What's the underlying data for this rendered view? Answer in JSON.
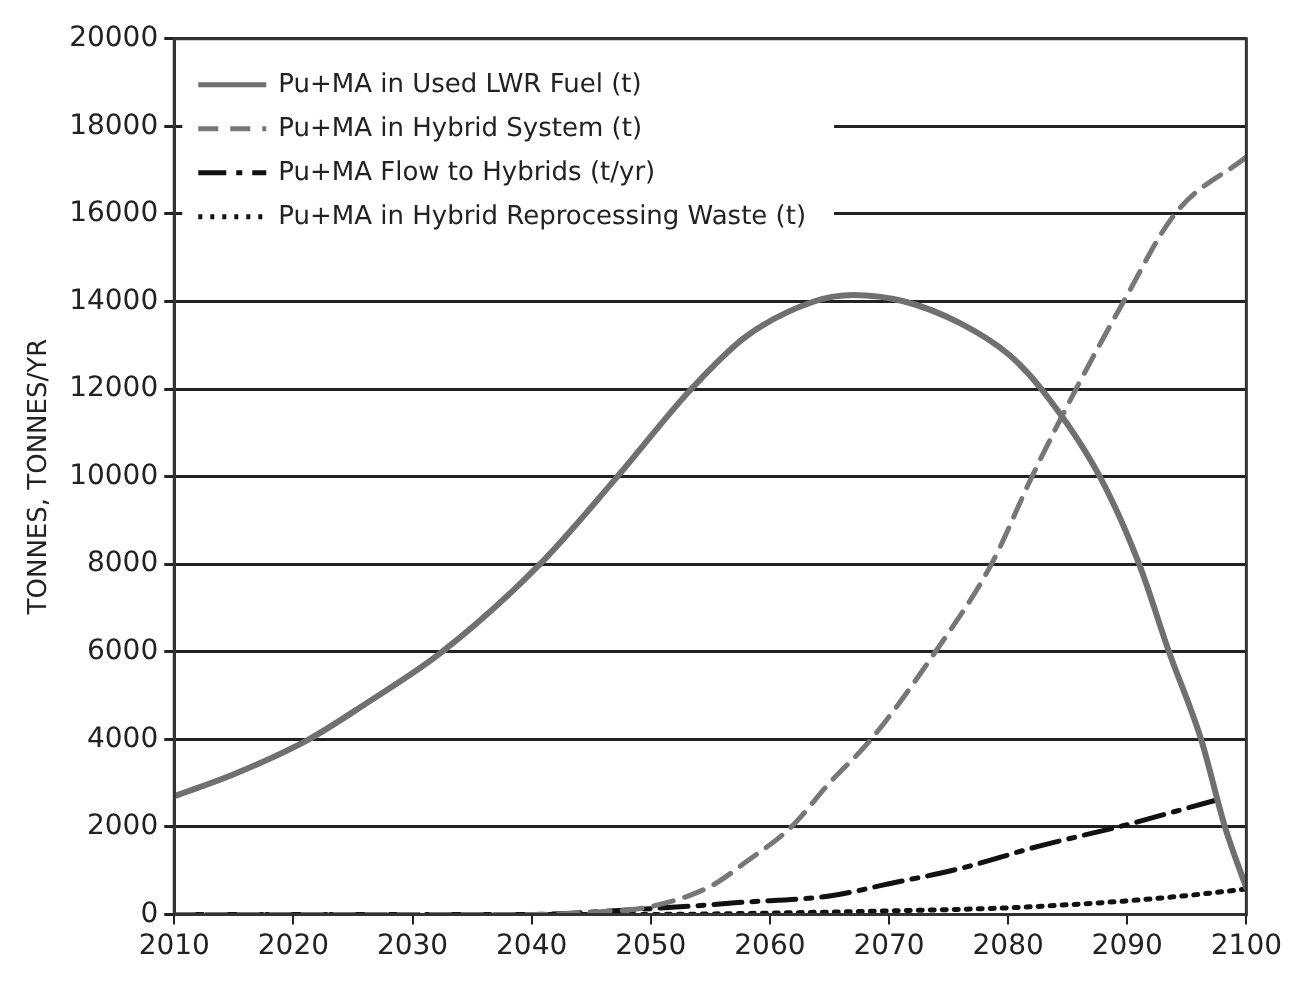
{
  "chart_data": {
    "type": "line",
    "ylabel": "TONNES, TONNES/YR",
    "xlim": [
      2010,
      2100
    ],
    "xticks": [
      2010,
      2020,
      2030,
      2040,
      2050,
      2060,
      2070,
      2080,
      2090,
      2100
    ],
    "ylim": [
      0,
      20000
    ],
    "yticks": [
      0,
      2000,
      4000,
      6000,
      8000,
      10000,
      12000,
      14000,
      16000,
      18000,
      20000
    ],
    "grid": "y",
    "legend": "top left",
    "marker": "none",
    "series": [
      {
        "name": "Pu+MA in Used LWR Fuel (t)",
        "color": "#707070",
        "line_style": "solid",
        "x": [
          2010,
          2015,
          2021.3,
          2026,
          2032.5,
          2040.7,
          2047.2,
          2053.4,
          2058,
          2063.7,
          2067,
          2071.3,
          2076,
          2080,
          2082.8,
          2087.7,
          2091,
          2093.5,
          2096.2,
          2098.2,
          2100
        ],
        "values": [
          2700,
          3200,
          4000,
          4800,
          6000,
          8000,
          10000,
          12000,
          13200,
          14000,
          14150,
          14000,
          13500,
          12800,
          12000,
          10000,
          8000,
          6000,
          4000,
          2000,
          600
        ]
      },
      {
        "name": "Pu+MA in Hybrid System (t)",
        "color": "#777777",
        "line_style": "dashed",
        "x": [
          2010,
          2040,
          2045,
          2050,
          2055,
          2058,
          2061.8,
          2065,
          2068.5,
          2073.9,
          2078.6,
          2082,
          2085.7,
          2089.7,
          2094,
          2100
        ],
        "values": [
          0,
          0,
          50,
          180,
          640,
          1200,
          2000,
          3000,
          4000,
          6000,
          8000,
          10000,
          12000,
          14000,
          16000,
          17300
        ]
      },
      {
        "name": "Pu+MA Flow to Hybrids (t/yr)",
        "color": "#111111",
        "line_style": "dashdot",
        "x": [
          2010,
          2040,
          2048,
          2055,
          2057.3,
          2065,
          2070,
          2076,
          2082.6,
          2090,
          2094,
          2098
        ],
        "values": [
          0,
          0,
          100,
          220,
          270,
          420,
          700,
          1050,
          1560,
          2050,
          2350,
          2650
        ]
      },
      {
        "name": "Pu+MA in Hybrid Reprocessing Waste (t)",
        "color": "#111111",
        "line_style": "dotted",
        "x": [
          2010,
          2050,
          2060,
          2070,
          2080,
          2085,
          2090,
          2095,
          2100
        ],
        "values": [
          0,
          0,
          30,
          80,
          150,
          220,
          310,
          430,
          580
        ]
      }
    ]
  }
}
